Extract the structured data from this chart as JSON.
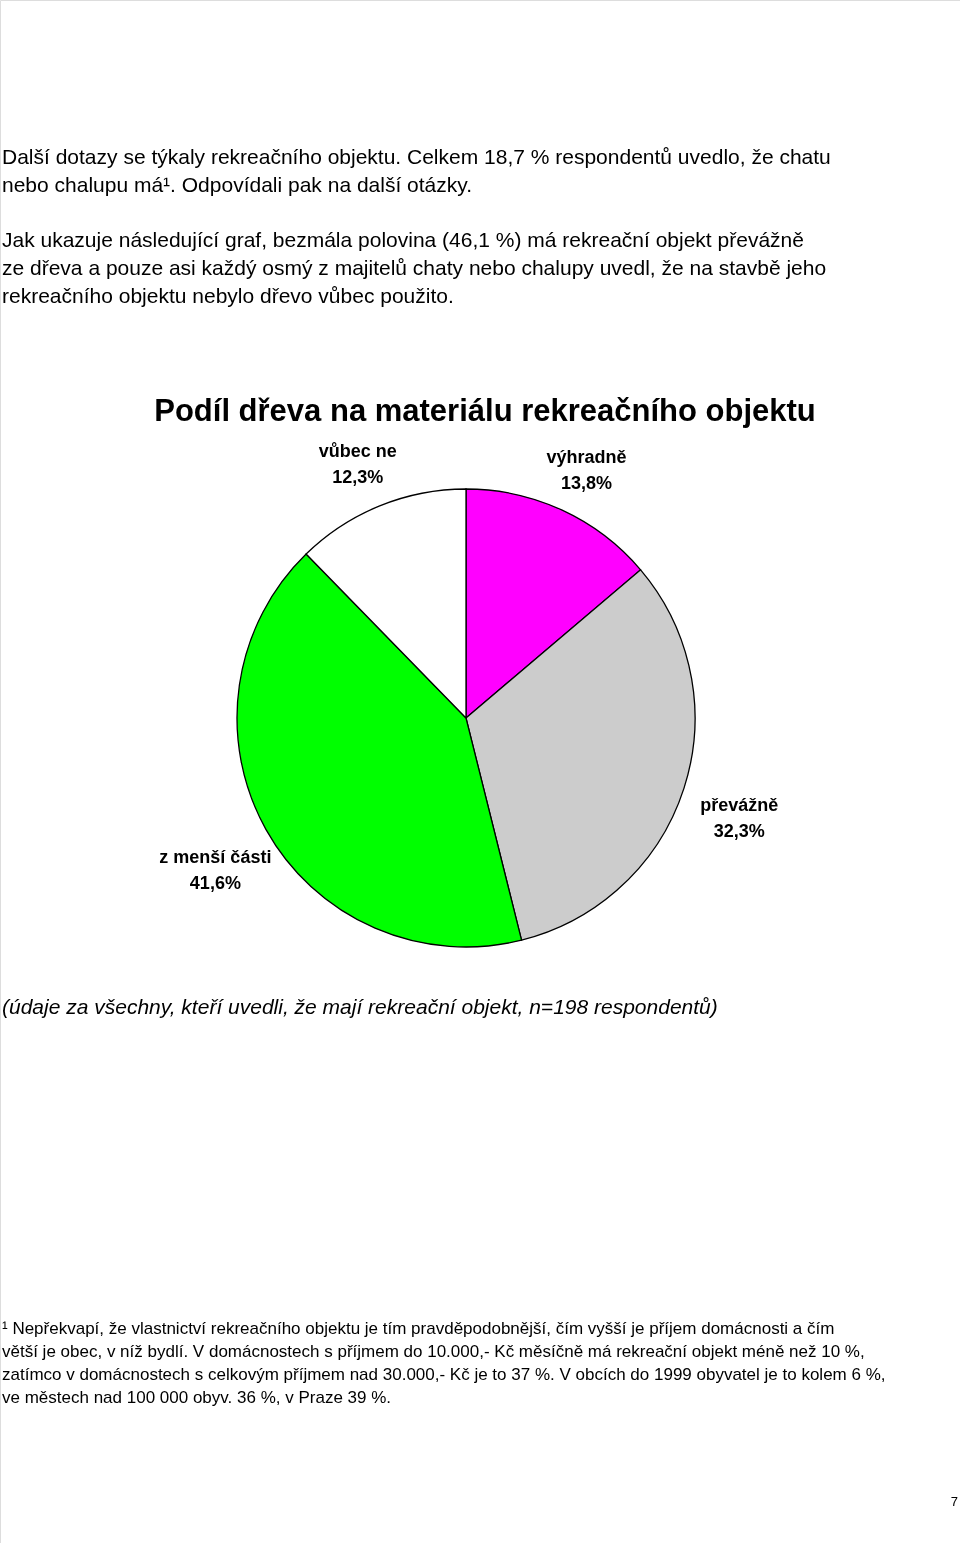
{
  "chart_data": {
    "type": "pie",
    "title": "Podíl dřeva na materiálu rekreačního objektu",
    "categories": [
      "výhradně",
      "převážně",
      "z menší části",
      "vůbec ne"
    ],
    "values": [
      13.8,
      32.3,
      41.6,
      12.3
    ],
    "colors": [
      "#ff00ff",
      "#cccccc",
      "#00ff00",
      "#ffffff"
    ],
    "value_labels": [
      "13,8%",
      "32,3%",
      "41,6%",
      "12,3%"
    ],
    "annotations": [
      "Další dotazy se týkaly rekreačního objektu. Celkem 18,7 % respondentů uvedlo, že chatu nebo chalupu má¹. Odpovídali pak na další otázky.",
      "Jak ukazuje následující graf, bezmála polovina (46,1 %) má rekreační objekt převážně ze dřeva a pouze asi každý osmý z majitelů chaty nebo chalupy uvedl, že na stavbě jeho rekreačního objektu nebylo dřevo vůbec použito.",
      "(údaje za všechny, kteří uvedli, že mají rekreační objekt, n=198 respondentů)",
      "¹ Nepřekvapí, že vlastnictví rekreačního objektu je tím pravděpodobnější, čím vyšší je příjem domácnosti a čím větší je obec, v níž bydlí. V domácnostech s příjmem do 10.000,- Kč měsíčně má rekreační objekt méně než 10 %, zatímco v domácnostech s celkovým příjmem nad 30.000,- Kč je to 37 %. V obcích do 1999 obyvatel je to kolem 6 %, ve městech nad 100 000 obyv. 36 %, v Praze 39 %.",
      "7"
    ]
  }
}
